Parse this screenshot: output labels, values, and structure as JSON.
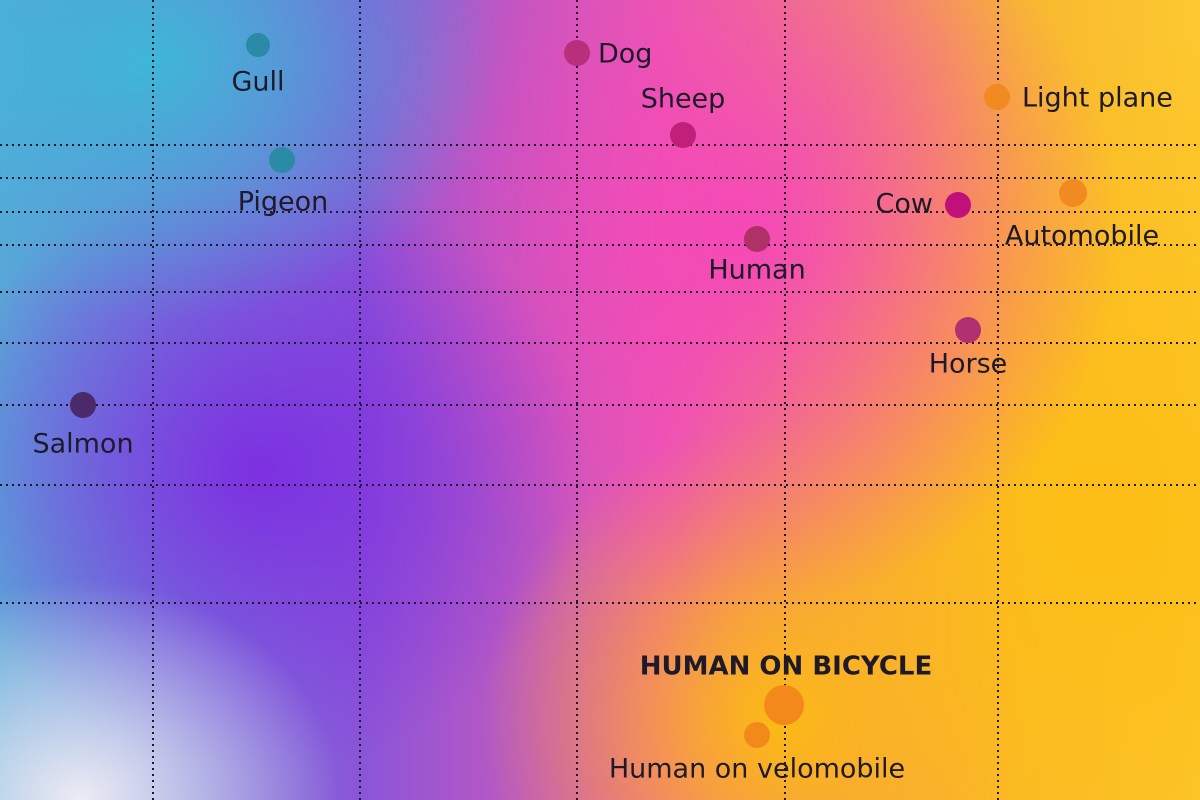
{
  "points": [
    {
      "label": "Gull"
    },
    {
      "label": "Pigeon"
    },
    {
      "label": "Dog"
    },
    {
      "label": "Sheep"
    },
    {
      "label": "Light plane"
    },
    {
      "label": "Cow"
    },
    {
      "label": "Automobile"
    },
    {
      "label": "Human"
    },
    {
      "label": "Horse"
    },
    {
      "label": "Salmon"
    },
    {
      "label": "HUMAN ON BICYCLE"
    },
    {
      "label": "Human on velomobile"
    }
  ]
}
